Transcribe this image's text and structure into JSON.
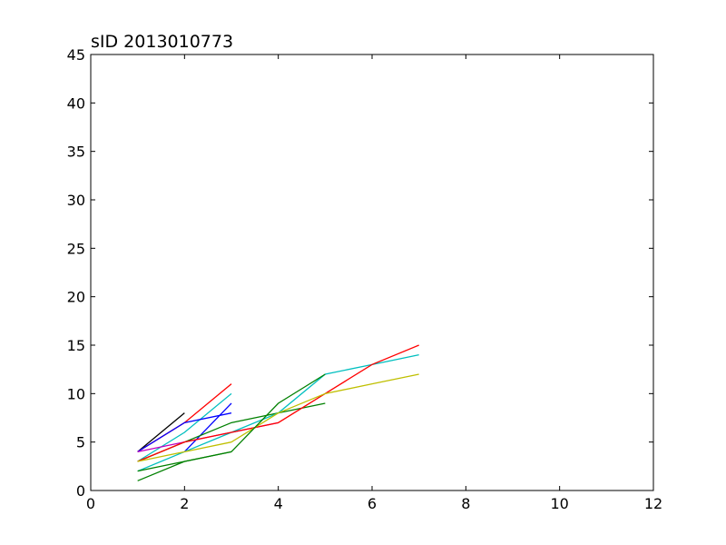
{
  "chart_data": {
    "type": "line",
    "title": "sID 2013010773",
    "xlabel": "",
    "ylabel": "",
    "xlim": [
      0,
      12
    ],
    "ylim": [
      0,
      45
    ],
    "xticks": [
      0,
      2,
      4,
      6,
      8,
      10,
      12
    ],
    "yticks": [
      0,
      5,
      10,
      15,
      20,
      25,
      30,
      35,
      40,
      45
    ],
    "grid": false,
    "series": [
      {
        "color": "#000000",
        "x": [
          1,
          2
        ],
        "y": [
          4,
          8
        ]
      },
      {
        "color": "#ff0000",
        "x": [
          1,
          2,
          3
        ],
        "y": [
          4,
          7,
          11
        ]
      },
      {
        "color": "#00bfbf",
        "x": [
          1,
          2,
          3
        ],
        "y": [
          3,
          6,
          10
        ]
      },
      {
        "color": "#0000ff",
        "x": [
          1,
          2,
          3
        ],
        "y": [
          4,
          7,
          8
        ]
      },
      {
        "color": "#0000ff",
        "x": [
          2,
          3
        ],
        "y": [
          4,
          9
        ]
      },
      {
        "color": "#bf00bf",
        "x": [
          1,
          2,
          3,
          4
        ],
        "y": [
          4,
          5,
          6,
          7
        ]
      },
      {
        "color": "#008000",
        "x": [
          1,
          2,
          3,
          4,
          5
        ],
        "y": [
          3,
          5,
          7,
          8,
          9
        ]
      },
      {
        "color": "#00bfbf",
        "x": [
          1,
          2,
          3,
          4,
          5,
          6,
          7
        ],
        "y": [
          2,
          4,
          6,
          8,
          12,
          13,
          14
        ]
      },
      {
        "color": "#ff0000",
        "x": [
          1,
          2,
          3,
          4,
          5,
          6,
          7
        ],
        "y": [
          3,
          5,
          6,
          7,
          10,
          13,
          15
        ]
      },
      {
        "color": "#bfbf00",
        "x": [
          1,
          2,
          3,
          4,
          5,
          6,
          7
        ],
        "y": [
          3,
          4,
          5,
          8,
          10,
          11,
          12
        ]
      },
      {
        "color": "#008000",
        "x": [
          1,
          2,
          3,
          4,
          5
        ],
        "y": [
          1,
          3,
          4,
          9,
          12
        ]
      },
      {
        "color": "#008000",
        "x": [
          1,
          2,
          3
        ],
        "y": [
          2,
          3,
          4
        ]
      }
    ]
  }
}
